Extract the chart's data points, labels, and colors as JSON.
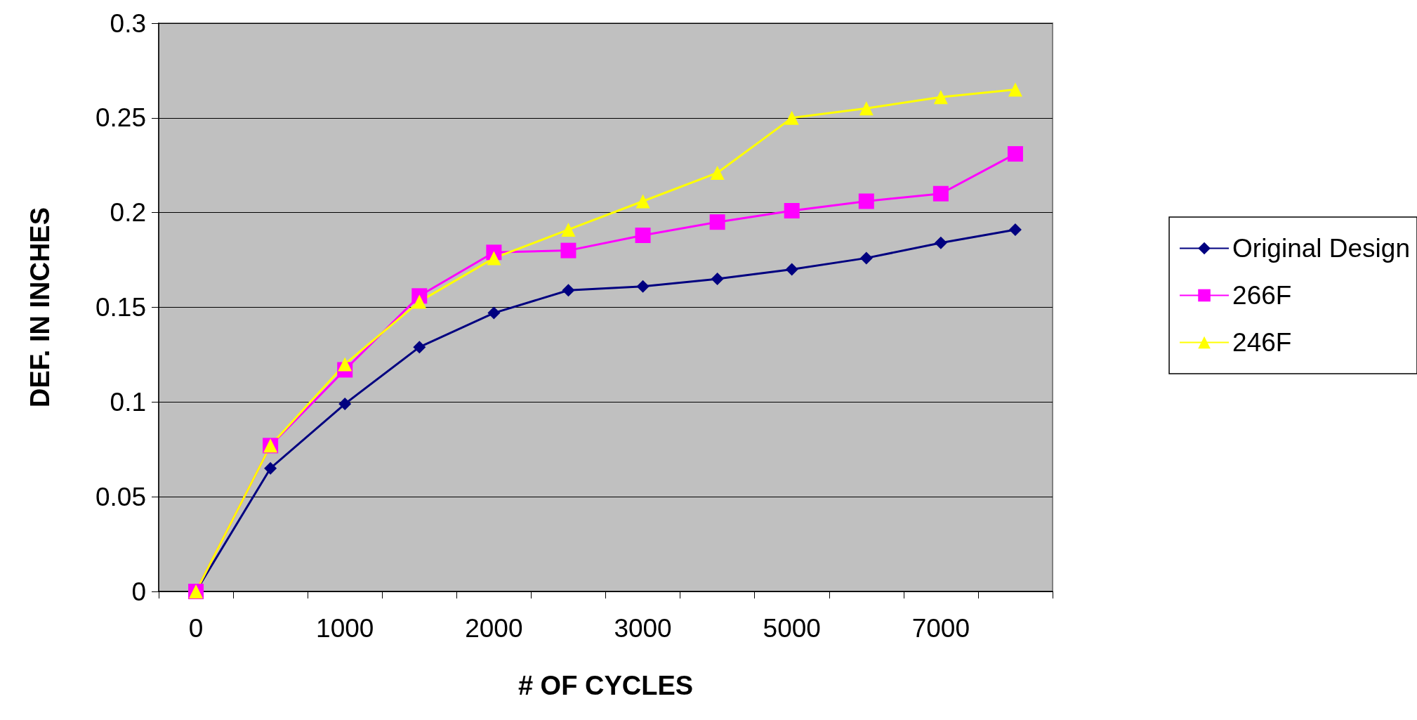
{
  "chart_data": {
    "type": "line",
    "xlabel": "# OF CYCLES",
    "ylabel": "DEF. IN INCHES",
    "categories": [
      "0",
      null,
      "1000",
      null,
      "2000",
      null,
      "3000",
      null,
      "5000",
      null,
      "7000",
      null
    ],
    "series": [
      {
        "name": "Original Design",
        "color": "#000080",
        "marker": "diamond",
        "values": [
          0,
          0.065,
          0.099,
          0.129,
          0.147,
          0.159,
          0.161,
          0.165,
          0.17,
          0.176,
          0.184,
          0.191
        ]
      },
      {
        "name": "266F",
        "color": "#ff00ff",
        "marker": "square",
        "values": [
          0,
          0.077,
          0.117,
          0.156,
          0.179,
          0.18,
          0.188,
          0.195,
          0.201,
          0.206,
          0.21,
          0.231
        ]
      },
      {
        "name": "246F",
        "color": "#ffff00",
        "marker": "triangle",
        "values": [
          0,
          0.077,
          0.12,
          0.153,
          0.176,
          0.191,
          0.206,
          0.221,
          0.25,
          0.255,
          0.261,
          0.265
        ]
      }
    ],
    "ylim": [
      0,
      0.3
    ],
    "yticks": [
      0,
      0.05,
      0.1,
      0.15,
      0.2,
      0.25,
      0.3
    ],
    "grid": "y",
    "legend": "right"
  }
}
